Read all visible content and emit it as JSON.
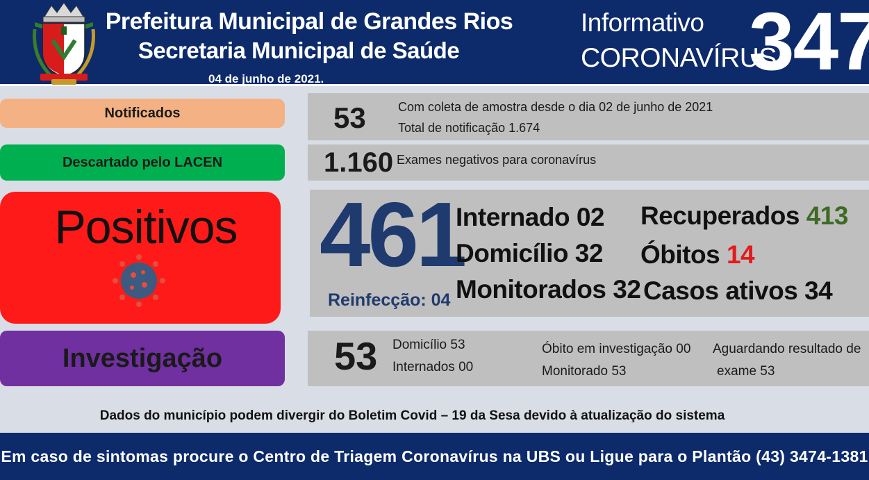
{
  "header": {
    "title_line1": "Prefeitura Municipal de Grandes Rios",
    "title_line2": "Secretaria Municipal de Saúde",
    "date": "04 de junho de 2021.",
    "info_line1": "Informativo",
    "info_line2": "CORONAVÍRUS",
    "bulletin_number": "347",
    "crest_icon": "municipal-crest-icon"
  },
  "notificados": {
    "label": "Notificados",
    "value": "53",
    "detail1": "Com coleta de amostra desde o dia 02 de junho de 2021",
    "detail2": "Total de notificação 1.674"
  },
  "descartado": {
    "label": "Descartado  pelo LACEN",
    "value": "1.160",
    "detail": "Exames negativos  para coronavírus"
  },
  "positivos": {
    "label": "Positivos",
    "value": "461",
    "reinfeccao": "Reinfecção: 04",
    "internado": "Internado 02",
    "domicilio": "Domicílio 32",
    "monitorados": "Monitorados 32",
    "recuperados_label": "Recuperados",
    "recuperados_value": "413",
    "obitos_label": "Óbitos",
    "obitos_value": "14",
    "casos_ativos": "Casos ativos 34",
    "virus_icon": "coronavirus-icon"
  },
  "investigacao": {
    "label": "Investigação",
    "value": "53",
    "domicilio": "Domicílio 53",
    "internados": "Internados 00",
    "obito": "Óbito  em investigação  00",
    "monitorado": "Monitorado 53",
    "aguardando1": "Aguardando resultado de",
    "aguardando2": "exame 53"
  },
  "note": "Dados do município  podem  divergir do Boletim  Covid – 19 da Sesa devido à atualização  do sistema",
  "footer": "Em caso de sintomas  procure  o Centro de Triagem  Coronavírus  na UBS ou Ligue  para  o Plantão  (43) 3474-1381",
  "colors": {
    "header_bg": "#0d2a6b",
    "notificados": "#f4b183",
    "descartado": "#00b050",
    "positivos": "#ff1a1a",
    "investigacao": "#7030a0",
    "recuperados": "#3d6b24",
    "obitos": "#e31b1b"
  }
}
